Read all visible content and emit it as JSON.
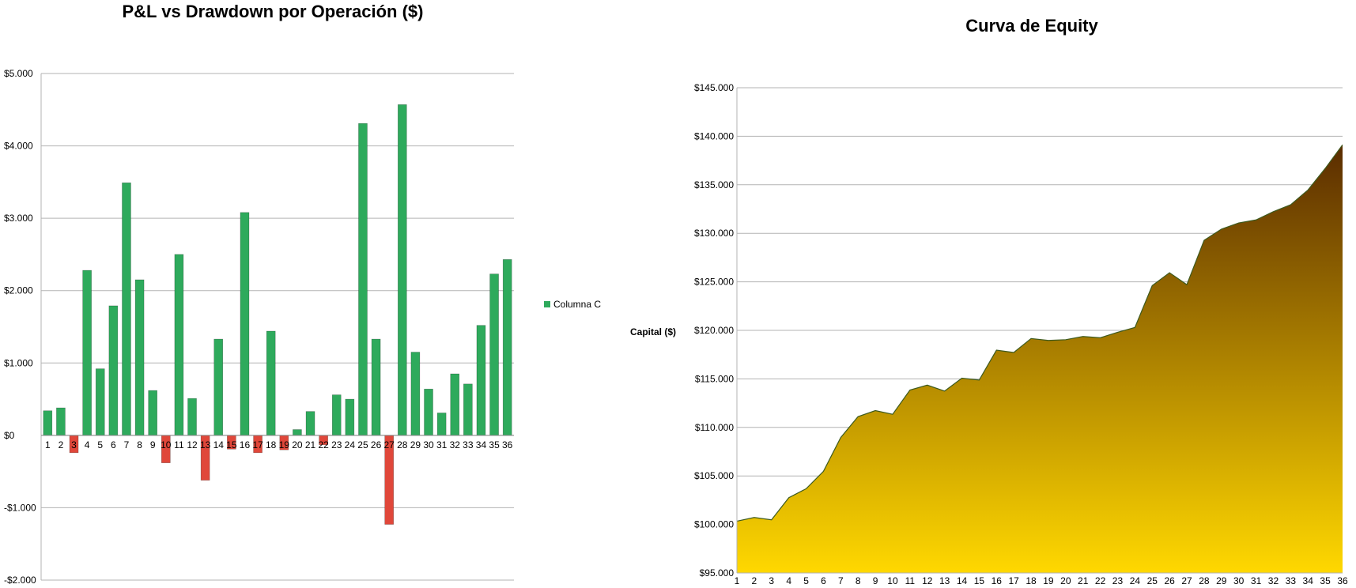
{
  "chart_data": [
    {
      "type": "bar",
      "title": "P&L vs Drawdown por Operación ($)",
      "xlabel": "",
      "ylabel": "",
      "categories": [
        "1",
        "2",
        "3",
        "4",
        "5",
        "6",
        "7",
        "8",
        "9",
        "10",
        "11",
        "12",
        "13",
        "14",
        "15",
        "16",
        "17",
        "18",
        "19",
        "20",
        "21",
        "22",
        "23",
        "24",
        "25",
        "26",
        "27",
        "28",
        "29",
        "30",
        "31",
        "32",
        "33",
        "34",
        "35",
        "36"
      ],
      "series": [
        {
          "name": "Columna C",
          "values": [
            340,
            380,
            -240,
            2280,
            920,
            1790,
            3490,
            2150,
            620,
            -380,
            2500,
            510,
            -620,
            1330,
            -190,
            3080,
            -240,
            1440,
            -200,
            80,
            330,
            -130,
            560,
            500,
            4310,
            1330,
            -1230,
            4570,
            1150,
            640,
            310,
            850,
            710,
            1520,
            2230,
            2430
          ]
        }
      ],
      "ylim": [
        -2000,
        5000
      ],
      "yticks": [
        -2000,
        -1000,
        0,
        1000,
        2000,
        3000,
        4000,
        5000
      ],
      "ytick_labels": [
        "-$2.000",
        "-$1.000",
        "$0",
        "$1.000",
        "$2.000",
        "$3.000",
        "$4.000",
        "$5.000"
      ],
      "colors": {
        "positive": "#2eaa5c",
        "negative": "#e0473a",
        "grid": "#b3b3b3"
      },
      "grid": true,
      "legend": "right"
    },
    {
      "type": "area",
      "title": "Curva de Equity",
      "xlabel": "",
      "ylabel": "Capital ($)",
      "x": [
        1,
        2,
        3,
        4,
        5,
        6,
        7,
        8,
        9,
        10,
        11,
        12,
        13,
        14,
        15,
        16,
        17,
        18,
        19,
        20,
        21,
        22,
        23,
        24,
        25,
        26,
        27,
        28,
        29,
        30,
        31,
        32,
        33,
        34,
        35,
        36
      ],
      "series": [
        {
          "values": [
            100340,
            100720,
            100480,
            102760,
            103680,
            105470,
            108960,
            111110,
            111730,
            111350,
            113850,
            114360,
            113740,
            115070,
            114880,
            117960,
            117720,
            119160,
            118960,
            119040,
            119370,
            119240,
            119800,
            120300,
            124610,
            125940,
            124710,
            129280,
            130430,
            131070,
            131380,
            132230,
            132940,
            134460,
            136690,
            139120
          ]
        }
      ],
      "ylim": [
        95000,
        145000
      ],
      "yticks": [
        95000,
        100000,
        105000,
        110000,
        115000,
        120000,
        125000,
        130000,
        135000,
        140000,
        145000
      ],
      "ytick_labels": [
        "$95.000",
        "$100.000",
        "$105.000",
        "$110.000",
        "$115.000",
        "$120.000",
        "$125.000",
        "$130.000",
        "$135.000",
        "$140.000",
        "$145.000"
      ],
      "colors": {
        "fill_top": "#5a2c00",
        "fill_bottom": "#ffd800",
        "line": "#3d5a1e",
        "grid": "#b3b3b3"
      },
      "grid": true,
      "legend": "none"
    }
  ]
}
